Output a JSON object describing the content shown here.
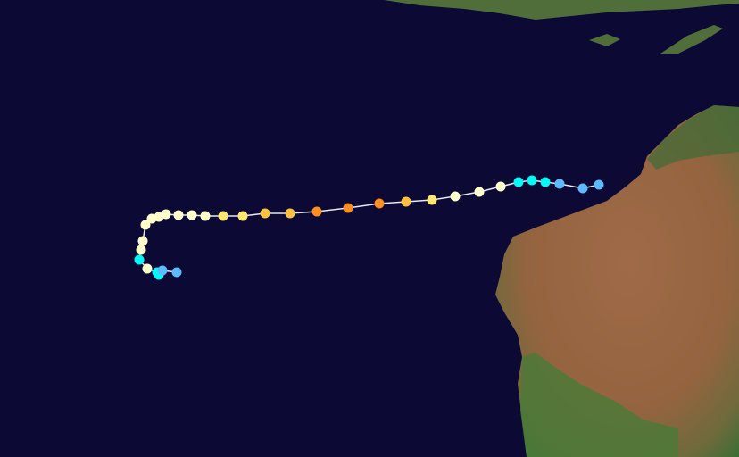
{
  "map": {
    "ocean_color": "#0c0a35",
    "land_colors": {
      "desert": "#9a6a48",
      "vegetation": "#4f7a3a",
      "coast": "#3a6a3a"
    }
  },
  "track": {
    "line_color": "#e8e8f0",
    "category_colors": {
      "TD": "#5ebaff",
      "TS": "#00faf4",
      "C1": "#ffffcc",
      "C2": "#ffe775",
      "C3": "#ffc140",
      "C4": "#ff8f20"
    },
    "points": [
      "TD",
      "TD",
      "TD",
      "TS",
      "TS",
      "TS",
      "C1",
      "C1",
      "C1",
      "C2",
      "C3",
      "C4",
      "C4",
      "C4",
      "C3",
      "C3",
      "C2",
      "C2",
      "C1",
      "C1",
      "C1",
      "C1",
      "C1",
      "C1",
      "C1",
      "C1",
      "C1",
      "TS",
      "C1",
      "TS",
      "TS",
      "TD",
      "TD"
    ]
  }
}
